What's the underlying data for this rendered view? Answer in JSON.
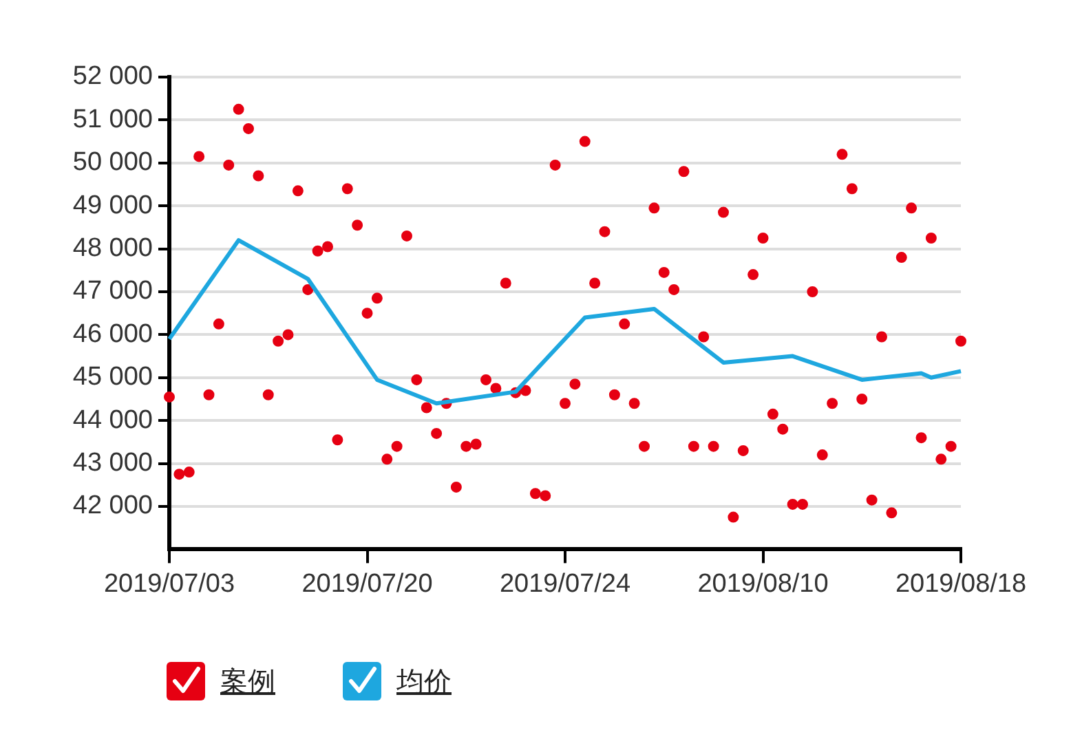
{
  "chart_data": {
    "type": "scatter",
    "ylim": [
      41000,
      52000
    ],
    "categories": [
      "2019/07/03",
      null,
      null,
      null,
      null,
      null,
      null,
      null,
      null,
      null,
      null,
      null,
      null,
      null,
      null,
      null,
      null,
      null,
      null,
      null,
      "2019/07/20",
      null,
      null,
      null,
      null,
      null,
      null,
      null,
      null,
      null,
      null,
      null,
      null,
      null,
      null,
      null,
      null,
      null,
      null,
      null,
      "2019/07/24",
      null,
      null,
      null,
      null,
      null,
      null,
      null,
      null,
      null,
      null,
      null,
      null,
      null,
      null,
      null,
      null,
      null,
      null,
      null,
      "2019/08/10",
      null,
      null,
      null,
      null,
      null,
      null,
      null,
      null,
      null,
      null,
      null,
      null,
      null,
      null,
      null,
      null,
      null,
      null,
      null,
      "2019/08/18"
    ],
    "yticks": [
      {
        "value": 42000,
        "label": "42 000"
      },
      {
        "value": 43000,
        "label": "43 000"
      },
      {
        "value": 44000,
        "label": "44 000"
      },
      {
        "value": 45000,
        "label": "45 000"
      },
      {
        "value": 46000,
        "label": "46 000"
      },
      {
        "value": 47000,
        "label": "47 000"
      },
      {
        "value": 48000,
        "label": "48 000"
      },
      {
        "value": 49000,
        "label": "49 000"
      },
      {
        "value": 50000,
        "label": "50 000"
      },
      {
        "value": 51000,
        "label": "51 000"
      },
      {
        "value": 52000,
        "label": "52 000"
      }
    ],
    "grid": "y",
    "legend": "bottom left",
    "marker": "circle",
    "series": [
      {
        "name": "案例",
        "color": "#e60012",
        "values": [
          44550,
          42750,
          42800,
          50150,
          44600,
          46250,
          49950,
          51250,
          50800,
          49700,
          44600,
          45850,
          46000,
          49350,
          47050,
          47950,
          48050,
          43550,
          49400,
          48550,
          46500,
          46850,
          43100,
          43400,
          48300,
          44950,
          44300,
          43700,
          44400,
          42450,
          43400,
          43450,
          44950,
          44750,
          47200,
          44650,
          44700,
          42300,
          42250,
          49950,
          44400,
          44850,
          50500,
          47200,
          48400,
          44600,
          46250,
          44400,
          43400,
          48950,
          47450,
          47050,
          49800,
          43400,
          45950,
          43400,
          48850,
          41750,
          43300,
          47400,
          48250,
          44150,
          43800,
          42050,
          42050,
          47000,
          43200,
          44400,
          50200,
          49400,
          44500,
          42150,
          45950,
          41850,
          47800,
          48950,
          43600,
          48250,
          43100,
          43400,
          45850
        ]
      },
      {
        "name": "均价",
        "type": "line",
        "marker": "none",
        "color": "#1ea7df",
        "values": [
          45900,
          null,
          null,
          null,
          null,
          null,
          null,
          48200,
          null,
          null,
          null,
          null,
          null,
          null,
          47300,
          null,
          null,
          null,
          null,
          null,
          null,
          44950,
          null,
          null,
          null,
          null,
          null,
          44400,
          null,
          null,
          null,
          null,
          null,
          null,
          null,
          44670,
          null,
          null,
          null,
          null,
          null,
          null,
          46400,
          null,
          null,
          null,
          null,
          null,
          null,
          46600,
          null,
          null,
          null,
          null,
          null,
          null,
          45350,
          null,
          null,
          null,
          null,
          null,
          null,
          45500,
          null,
          null,
          null,
          null,
          null,
          null,
          44950,
          null,
          null,
          null,
          null,
          null,
          45100,
          45000,
          null,
          null,
          45150
        ]
      }
    ]
  }
}
